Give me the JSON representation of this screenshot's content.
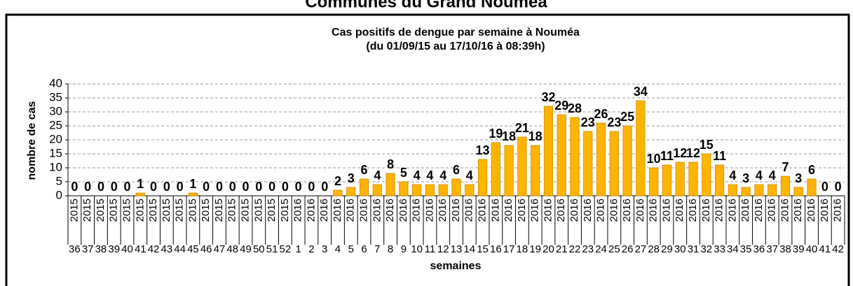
{
  "page_title": "Communes du Grand Nouméa",
  "chart_data": {
    "type": "bar",
    "title": [
      "Cas positifs de dengue par semaine à Nouméa",
      "(du 01/09/15 au 17/10/16 à 08:39h)"
    ],
    "x_label": "semaines",
    "y_label": "nombre de cas",
    "categories": [
      "36",
      "37",
      "38",
      "39",
      "40",
      "41",
      "42",
      "43",
      "44",
      "45",
      "46",
      "47",
      "48",
      "49",
      "50",
      "51",
      "52",
      "1",
      "2",
      "3",
      "4",
      "5",
      "6",
      "7",
      "8",
      "9",
      "10",
      "11",
      "12",
      "13",
      "14",
      "15",
      "16",
      "17",
      "18",
      "19",
      "20",
      "21",
      "22",
      "23",
      "24",
      "25",
      "26",
      "27",
      "28",
      "29",
      "30",
      "31",
      "32",
      "33",
      "34",
      "35",
      "36",
      "37",
      "38",
      "39",
      "40",
      "41",
      "42"
    ],
    "years": [
      "2015",
      "2015",
      "2015",
      "2015",
      "2015",
      "2015",
      "2015",
      "2015",
      "2015",
      "2015",
      "2015",
      "2015",
      "2015",
      "2015",
      "2015",
      "2015",
      "2015",
      "2016",
      "2016",
      "2016",
      "2016",
      "2016",
      "2016",
      "2016",
      "2016",
      "2016",
      "2016",
      "2016",
      "2016",
      "2016",
      "2016",
      "2016",
      "2016",
      "2016",
      "2016",
      "2016",
      "2016",
      "2016",
      "2016",
      "2016",
      "2016",
      "2016",
      "2016",
      "2016",
      "2016",
      "2016",
      "2016",
      "2016",
      "2016",
      "2016",
      "2016",
      "2016",
      "2016",
      "2016",
      "2016",
      "2016",
      "2016",
      "2016",
      "2016"
    ],
    "values": [
      0,
      0,
      0,
      0,
      0,
      1,
      0,
      0,
      0,
      1,
      0,
      0,
      0,
      0,
      0,
      0,
      0,
      0,
      0,
      0,
      2,
      3,
      6,
      4,
      8,
      5,
      4,
      4,
      4,
      6,
      4,
      13,
      19,
      18,
      21,
      18,
      32,
      29,
      28,
      23,
      26,
      23,
      25,
      34,
      10,
      11,
      12,
      12,
      15,
      11,
      4,
      3,
      4,
      4,
      7,
      3,
      6,
      0,
      0
    ],
    "color": "#FFB400",
    "ylim": [
      0,
      40
    ],
    "yticks": [
      0,
      5,
      10,
      15,
      20,
      25,
      30,
      35,
      40
    ],
    "grid": true
  }
}
